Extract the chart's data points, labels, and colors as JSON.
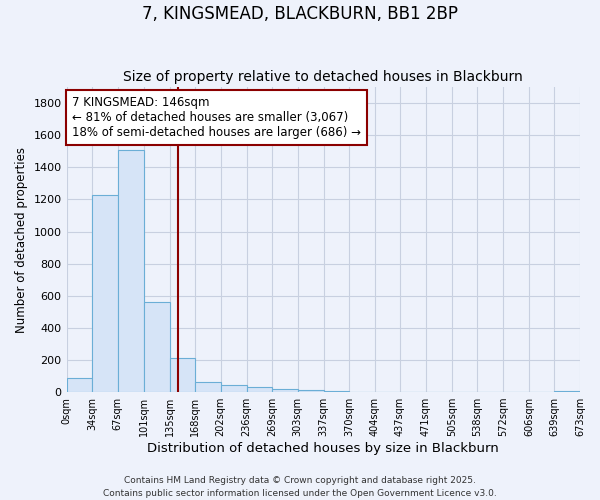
{
  "title": "7, KINGSMEAD, BLACKBURN, BB1 2BP",
  "subtitle": "Size of property relative to detached houses in Blackburn",
  "xlabel": "Distribution of detached houses by size in Blackburn",
  "ylabel": "Number of detached properties",
  "bar_edges": [
    0,
    34,
    67,
    101,
    135,
    168,
    202,
    236,
    269,
    303,
    337,
    370,
    404,
    437,
    471,
    505,
    538,
    572,
    606,
    639,
    673
  ],
  "bar_heights": [
    90,
    1230,
    1510,
    560,
    210,
    65,
    45,
    30,
    20,
    10,
    5,
    3,
    0,
    0,
    0,
    0,
    0,
    0,
    0,
    5
  ],
  "bar_color": "#d6e4f7",
  "bar_edge_color": "#6baed6",
  "property_line_x": 146,
  "property_line_color": "#8b0000",
  "annotation_line1": "7 KINGSMEAD: 146sqm",
  "annotation_line2": "← 81% of detached houses are smaller (3,067)",
  "annotation_line3": "18% of semi-detached houses are larger (686) →",
  "annotation_fontsize": 8.5,
  "ylim": [
    0,
    1900
  ],
  "yticks": [
    0,
    200,
    400,
    600,
    800,
    1000,
    1200,
    1400,
    1600,
    1800
  ],
  "x_tick_labels": [
    "0sqm",
    "34sqm",
    "67sqm",
    "101sqm",
    "135sqm",
    "168sqm",
    "202sqm",
    "236sqm",
    "269sqm",
    "303sqm",
    "337sqm",
    "370sqm",
    "404sqm",
    "437sqm",
    "471sqm",
    "505sqm",
    "538sqm",
    "572sqm",
    "606sqm",
    "639sqm",
    "673sqm"
  ],
  "background_color": "#eef2fb",
  "grid_color": "#c8d0e0",
  "title_fontsize": 12,
  "subtitle_fontsize": 10,
  "xlabel_fontsize": 9.5,
  "ylabel_fontsize": 8.5,
  "footer_line1": "Contains HM Land Registry data © Crown copyright and database right 2025.",
  "footer_line2": "Contains public sector information licensed under the Open Government Licence v3.0.",
  "footer_fontsize": 6.5
}
